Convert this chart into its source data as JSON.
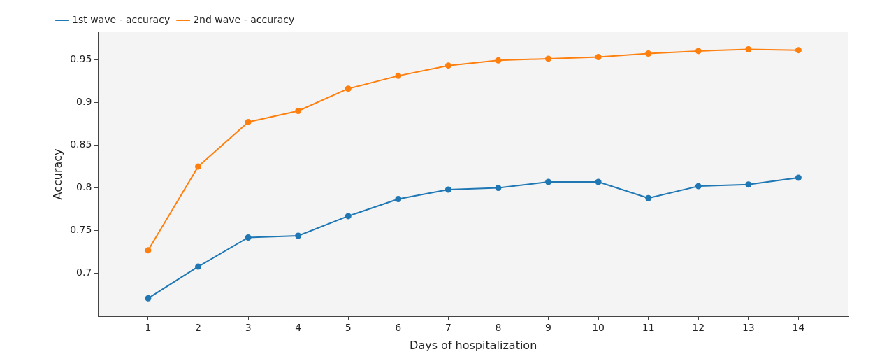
{
  "chart_data": {
    "type": "line",
    "xlabel": "Days of hospitalization",
    "ylabel": "Accuracy",
    "x": [
      1,
      2,
      3,
      4,
      5,
      6,
      7,
      8,
      9,
      10,
      11,
      12,
      13,
      14
    ],
    "xlim": [
      0,
      15
    ],
    "xticks": [
      1,
      2,
      3,
      4,
      5,
      6,
      7,
      8,
      9,
      10,
      11,
      12,
      13,
      14
    ],
    "ylim": [
      0.65,
      0.982
    ],
    "yticks": [
      0.7,
      0.75,
      0.8,
      0.85,
      0.9,
      0.95
    ],
    "legend": "top left",
    "marker": "circle",
    "line_style": "solid",
    "series": [
      {
        "name": "1st wave - accuracy",
        "color": "#1f77b4",
        "values": [
          0.671,
          0.708,
          0.742,
          0.744,
          0.767,
          0.787,
          0.798,
          0.8,
          0.807,
          0.807,
          0.788,
          0.802,
          0.804,
          0.812
        ]
      },
      {
        "name": "2nd wave - accuracy",
        "color": "#ff7f0e",
        "values": [
          0.727,
          0.825,
          0.877,
          0.89,
          0.916,
          0.931,
          0.943,
          0.949,
          0.951,
          0.953,
          0.957,
          0.96,
          0.962,
          0.961
        ]
      }
    ]
  }
}
